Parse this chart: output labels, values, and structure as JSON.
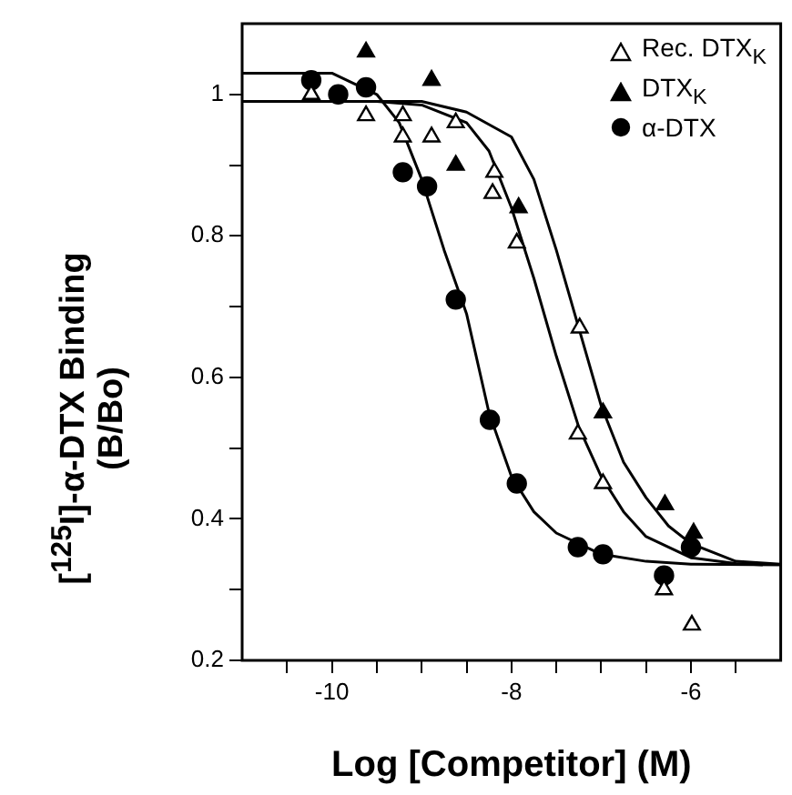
{
  "chart_data": {
    "type": "scatter",
    "xlabel": "Log [Competitor] (M)",
    "ylabel": "[$^{125}$I]-α-DTX Binding\n(B/Bo)",
    "xlim": [
      -11,
      -5
    ],
    "ylim": [
      0.2,
      1.1
    ],
    "xticks": [
      {
        "value": -10.5,
        "label": null
      },
      -10,
      {
        "value": -9.5,
        "label": null
      },
      {
        "value": -9,
        "label": null
      },
      {
        "value": -8.5,
        "label": null
      },
      -8,
      {
        "value": -7.5,
        "label": null
      },
      {
        "value": -7,
        "label": null
      },
      {
        "value": -6.5,
        "label": null
      },
      -6,
      {
        "value": -5.5,
        "label": null
      }
    ],
    "yticks": [
      0.2,
      {
        "value": 0.3,
        "label": null
      },
      0.4,
      {
        "value": 0.5,
        "label": null
      },
      0.6,
      {
        "value": 0.7,
        "label": null
      },
      0.8,
      {
        "value": 0.9,
        "label": null
      },
      {
        "value": 1,
        "label": "1"
      }
    ],
    "grid": false,
    "legend": "top right",
    "series": [
      {
        "type": "scatter",
        "name": "Rec. DTX$_{K}$",
        "color": "#ffffff",
        "marker": "triangle",
        "x": [
          -10.23,
          -9.62,
          -9.21,
          -9.21,
          -8.89,
          -8.62,
          -8.19,
          -8.21,
          -7.94,
          -7.24,
          -7.26,
          -6.98,
          -6.3,
          -5.99
        ],
        "values": [
          1.0,
          0.97,
          0.97,
          0.94,
          0.94,
          0.96,
          0.89,
          0.86,
          0.79,
          0.67,
          0.52,
          0.45,
          0.3,
          0.25
        ]
      },
      {
        "type": "scatter",
        "name": "DTX$_{K}$",
        "color": "#000000",
        "marker": "triangle",
        "x": [
          -9.62,
          -8.89,
          -8.62,
          -7.92,
          -6.98,
          -6.29,
          -5.97
        ],
        "values": [
          1.06,
          1.02,
          0.9,
          0.84,
          0.55,
          0.42,
          0.38
        ]
      },
      {
        "type": "scatter",
        "name": "α-DTX",
        "color": "#000000",
        "marker": "circle",
        "x": [
          -10.23,
          -9.93,
          -9.62,
          -9.21,
          -8.94,
          -8.62,
          -8.24,
          -7.94,
          -7.26,
          -6.98,
          -6.3,
          -6.0
        ],
        "values": [
          1.02,
          1.0,
          1.01,
          0.89,
          0.87,
          0.71,
          0.54,
          0.45,
          0.36,
          0.35,
          0.32,
          0.36
        ]
      },
      {
        "type": "line",
        "color": "#000000",
        "marker": "none",
        "x": [
          -11,
          -10,
          -9.5,
          -9.25,
          -9,
          -8.75,
          -8.5,
          -8.25,
          -8,
          -7.75,
          -7.5,
          -7,
          -6.5,
          -6,
          -5
        ],
        "values": [
          1.03,
          1.03,
          1.0,
          0.96,
          0.88,
          0.78,
          0.69,
          0.55,
          0.46,
          0.41,
          0.38,
          0.35,
          0.34,
          0.336,
          0.335
        ]
      },
      {
        "type": "line",
        "color": "#000000",
        "marker": "none",
        "x": [
          -11,
          -9.5,
          -9,
          -8.5,
          -8.25,
          -8,
          -7.75,
          -7.5,
          -7.25,
          -7,
          -6.75,
          -6.5,
          -6,
          -5.5,
          -5.2
        ],
        "values": [
          0.99,
          0.99,
          0.985,
          0.96,
          0.92,
          0.84,
          0.74,
          0.63,
          0.53,
          0.46,
          0.41,
          0.375,
          0.345,
          0.337,
          0.335
        ]
      },
      {
        "type": "line",
        "color": "#000000",
        "marker": "none",
        "x": [
          -10.8,
          -9,
          -8.5,
          -8,
          -7.75,
          -7.5,
          -7.25,
          -7,
          -6.75,
          -6.5,
          -6.25,
          -6,
          -5.5,
          -5
        ],
        "values": [
          0.99,
          0.99,
          0.975,
          0.94,
          0.88,
          0.78,
          0.67,
          0.56,
          0.48,
          0.43,
          0.39,
          0.365,
          0.34,
          0.336
        ]
      }
    ]
  }
}
